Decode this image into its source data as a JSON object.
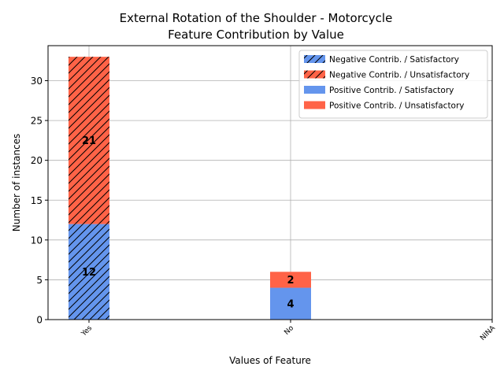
{
  "chart_data": {
    "type": "bar",
    "title_line1": "External Rotation of the Shoulder - Motorcycle",
    "title_line2": "Feature Contribution by Value",
    "xlabel": "Values of Feature",
    "ylabel": "Number of instances",
    "categories": [
      "Yes",
      "No",
      "NINA"
    ],
    "ylim": [
      0,
      34.4
    ],
    "yticks": [
      0,
      5,
      10,
      15,
      20,
      25,
      30
    ],
    "grid": true,
    "legend_position": "top-right",
    "colors": {
      "satisfactory": "#6495ED",
      "unsatisfactory": "#FF6347"
    },
    "series": [
      {
        "name": "Negative Contrib. / Satisfactory",
        "color": "#6495ED",
        "hatch": true,
        "values": [
          12,
          0,
          0
        ]
      },
      {
        "name": "Negative Contrib. / Unsatisfactory",
        "color": "#FF6347",
        "hatch": true,
        "values": [
          21,
          0,
          0
        ]
      },
      {
        "name": "Positive Contrib. / Satisfactory",
        "color": "#6495ED",
        "hatch": false,
        "values": [
          0,
          4,
          0
        ]
      },
      {
        "name": "Positive Contrib. / Unsatisfactory",
        "color": "#FF6347",
        "hatch": false,
        "values": [
          0,
          2,
          0
        ]
      }
    ]
  }
}
